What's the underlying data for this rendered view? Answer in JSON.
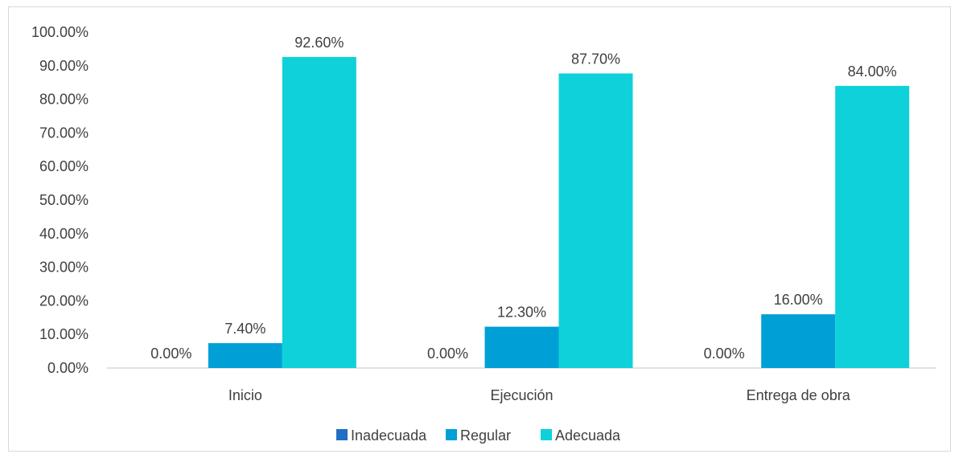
{
  "chart_data": {
    "type": "bar",
    "categories": [
      "Inicio",
      "Ejecución",
      "Entrega de obra"
    ],
    "series": [
      {
        "name": "Inadecuada",
        "values": [
          0.0,
          0.0,
          0.0
        ],
        "labels": [
          "0.00%",
          "0.00%",
          "0.00%"
        ],
        "color": "#1f6fc2"
      },
      {
        "name": "Regular",
        "values": [
          7.4,
          12.3,
          16.0
        ],
        "labels": [
          "7.40%",
          "12.30%",
          "16.00%"
        ],
        "color": "#00a0d6"
      },
      {
        "name": "Adecuada",
        "values": [
          92.6,
          87.7,
          84.0
        ],
        "labels": [
          "92.60%",
          "87.70%",
          "84.00%"
        ],
        "color": "#0fd1d9"
      }
    ],
    "yticks": [
      "0.00%",
      "10.00%",
      "20.00%",
      "30.00%",
      "40.00%",
      "50.00%",
      "60.00%",
      "70.00%",
      "80.00%",
      "90.00%",
      "100.00%"
    ],
    "ylim": [
      0,
      100
    ],
    "grid": false,
    "legend_position": "bottom"
  }
}
